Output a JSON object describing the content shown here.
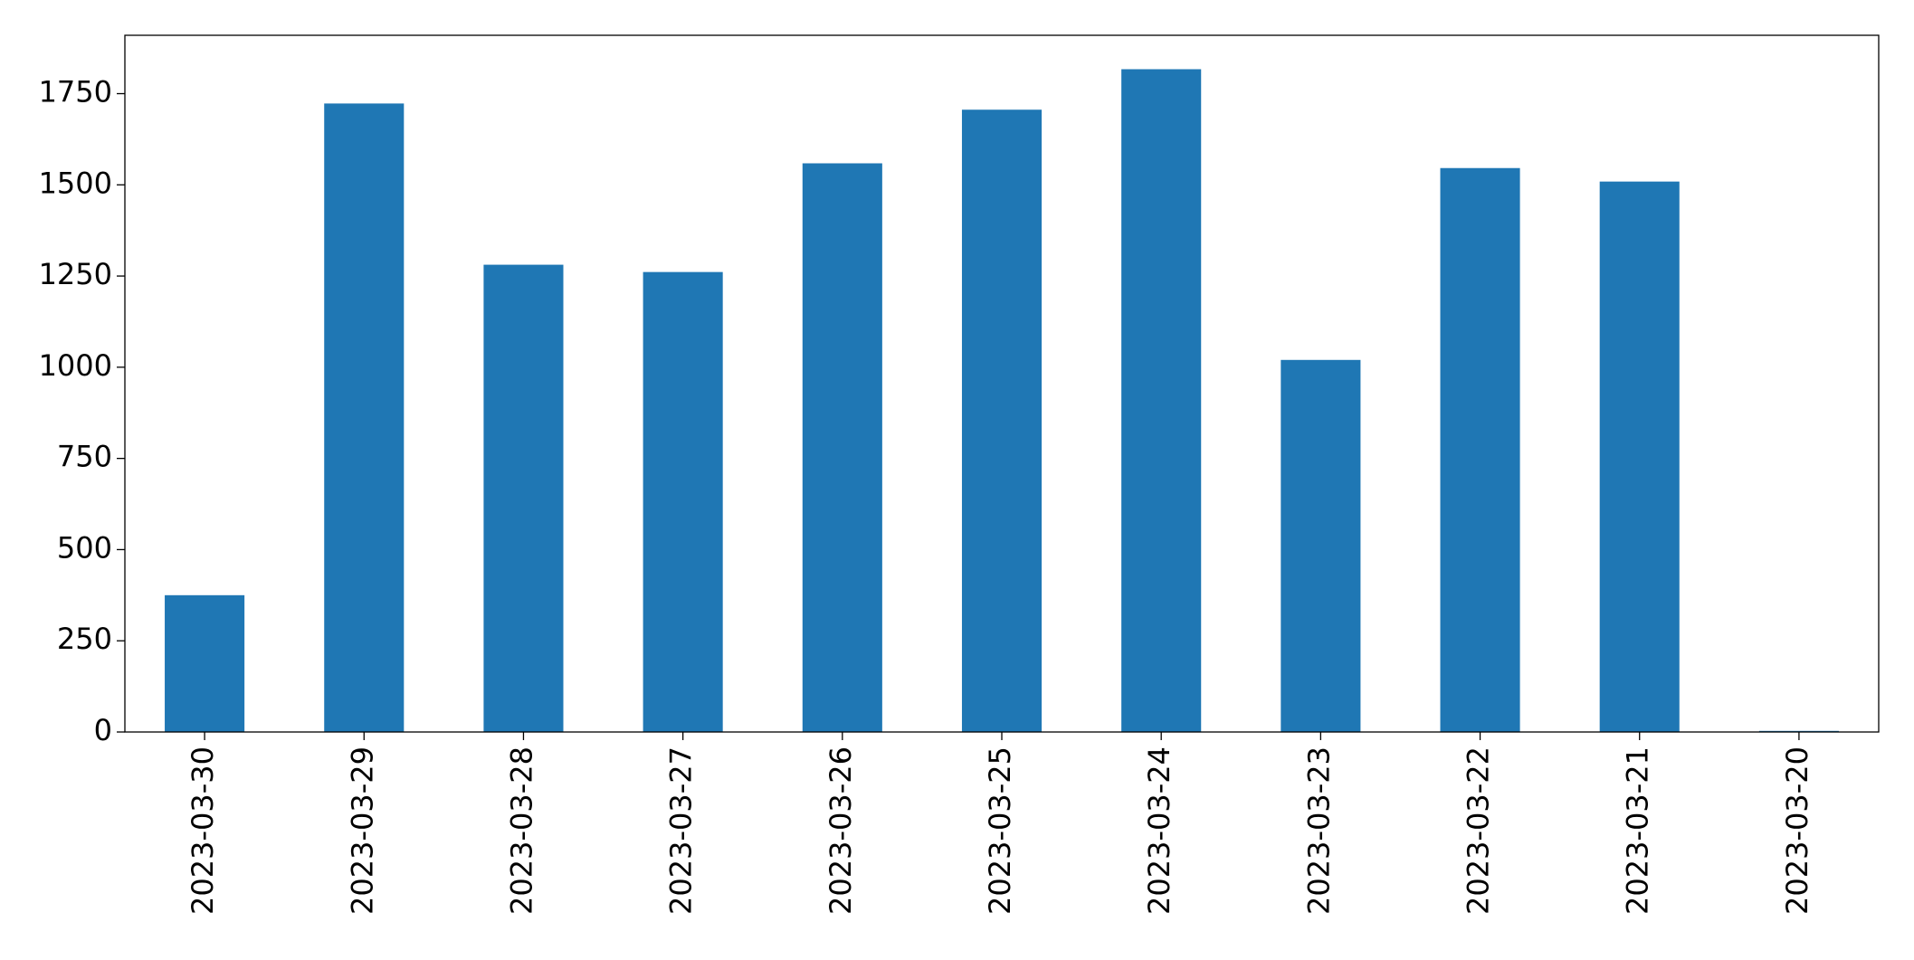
{
  "chart_data": {
    "type": "bar",
    "categories": [
      "2023-03-30",
      "2023-03-29",
      "2023-03-28",
      "2023-03-27",
      "2023-03-26",
      "2023-03-25",
      "2023-03-24",
      "2023-03-23",
      "2023-03-22",
      "2023-03-21",
      "2023-03-20"
    ],
    "values": [
      375,
      1723,
      1281,
      1261,
      1559,
      1706,
      1817,
      1020,
      1546,
      1509,
      3
    ],
    "color": "#1f77b4",
    "ylim": [
      0,
      1910
    ],
    "yticks": [
      0,
      250,
      500,
      750,
      1000,
      1250,
      1500,
      1750
    ],
    "grid": false
  }
}
